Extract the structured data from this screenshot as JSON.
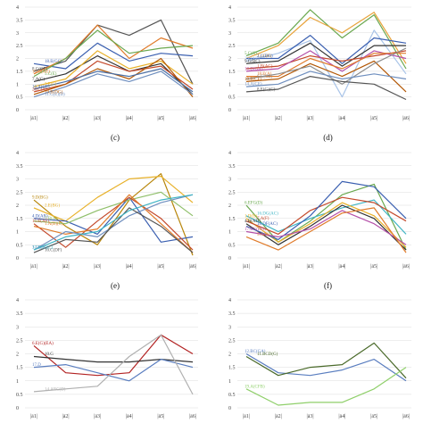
{
  "chart_data": [
    {
      "type": "line",
      "caption": "(c)",
      "ylim": [
        0,
        4
      ],
      "yticks": [
        "0",
        "0.5",
        "1",
        "1.5",
        "2",
        "2.5",
        "3",
        "3.5",
        "4"
      ],
      "categories": [
        "|ā1|",
        "|ā2|",
        "|ā3|",
        "|ā4|",
        "|ā5|",
        "|ā6|"
      ],
      "grid": true,
      "series": [
        {
          "name": "8.G(CE)",
          "color": "#555555",
          "values": [
            1.5,
            1.9,
            3.3,
            2.9,
            3.5,
            1.0
          ]
        },
        {
          "name": "18.E(GC)",
          "color": "#3a5fb0",
          "values": [
            1.8,
            1.6,
            2.6,
            1.9,
            2.2,
            2.1
          ]
        },
        {
          "name": "15.G(AE)",
          "color": "#e07b2a",
          "values": [
            1.4,
            2.0,
            3.3,
            2.0,
            2.8,
            2.4
          ]
        },
        {
          "name": "5.C(E)",
          "color": "#6aa84f",
          "values": [
            1.3,
            2.0,
            3.1,
            2.2,
            2.4,
            2.5
          ]
        },
        {
          "name": "7.A(C)",
          "color": "#333333",
          "values": [
            1.1,
            1.4,
            2.1,
            1.5,
            1.8,
            0.6
          ]
        },
        {
          "name": "3.E(C)",
          "color": "#e8b12a",
          "values": [
            0.9,
            1.2,
            2.3,
            1.6,
            1.9,
            1.0
          ]
        },
        {
          "name": "20.C(A)",
          "color": "#c44a2c",
          "values": [
            0.7,
            1.0,
            1.9,
            1.5,
            1.7,
            0.8
          ]
        },
        {
          "name": "19.B(DG)",
          "color": "#b35806",
          "values": [
            0.6,
            1.0,
            1.6,
            1.2,
            2.0,
            0.5
          ]
        },
        {
          "name": "16.A(CE)",
          "color": "#4a6fa5",
          "values": [
            0.8,
            1.1,
            1.5,
            1.3,
            1.6,
            0.7
          ]
        },
        {
          "name": "11.C(E)(D)",
          "color": "#6f8fbf",
          "values": [
            0.5,
            0.9,
            1.4,
            1.1,
            1.5,
            0.6
          ]
        }
      ]
    },
    {
      "type": "line",
      "caption": "(d)",
      "ylim": [
        0,
        4
      ],
      "yticks": [
        "0",
        "0.5",
        "1",
        "1.5",
        "2",
        "2.5",
        "3",
        "3.5",
        "4"
      ],
      "categories": [
        "|ā1|",
        "|ā2|",
        "|ā3|",
        "|ā4|",
        "|ā5|",
        "|ā6|"
      ],
      "grid": true,
      "series": [
        {
          "name": "5.C(G)",
          "color": "#6aa84f",
          "values": [
            2.1,
            2.6,
            3.9,
            2.8,
            3.7,
            1.6
          ]
        },
        {
          "name": "13.G(E)",
          "color": "#e8a33a",
          "values": [
            2.0,
            2.5,
            3.6,
            3.0,
            3.8,
            1.8
          ]
        },
        {
          "name": "3.E(AF)",
          "color": "#a9c4e8",
          "values": [
            1.9,
            2.2,
            2.7,
            0.5,
            3.1,
            1.4
          ]
        },
        {
          "name": "2.C(DG)",
          "color": "#3a5fb0",
          "values": [
            2.0,
            2.0,
            2.9,
            1.8,
            2.8,
            2.6
          ]
        },
        {
          "name": "9.G(BC)",
          "color": "#333333",
          "values": [
            1.8,
            1.9,
            2.6,
            1.7,
            2.5,
            2.5
          ]
        },
        {
          "name": "1.B(AC)",
          "color": "#c44a2c",
          "values": [
            1.6,
            1.7,
            2.1,
            1.9,
            2.1,
            2.3
          ]
        },
        {
          "name": "10.D(GA)",
          "color": "#b44fa8",
          "values": [
            1.5,
            1.6,
            2.3,
            1.5,
            2.3,
            2.0
          ]
        },
        {
          "name": "18.E(A)",
          "color": "#e07b2a",
          "values": [
            1.3,
            1.3,
            2.0,
            1.6,
            2.2,
            2.2
          ]
        },
        {
          "name": "19.B(CE)",
          "color": "#b35806",
          "values": [
            1.1,
            1.2,
            1.8,
            1.3,
            1.9,
            0.7
          ]
        },
        {
          "name": "6.G(CE)",
          "color": "#8c8c8c",
          "values": [
            1.2,
            1.4,
            1.7,
            1.0,
            1.8,
            2.4
          ]
        },
        {
          "name": "14.A(CE)",
          "color": "#6f8fbf",
          "values": [
            0.9,
            1.0,
            1.5,
            1.2,
            1.4,
            1.2
          ]
        },
        {
          "name": "8.E(G)(C)",
          "color": "#555555",
          "values": [
            0.7,
            0.8,
            1.3,
            1.1,
            1.0,
            0.4
          ]
        }
      ]
    },
    {
      "type": "line",
      "caption": "(e)",
      "ylim": [
        0,
        4
      ],
      "yticks": [
        "0",
        "0.5",
        "1",
        "1.5",
        "2",
        "2.5",
        "3",
        "3.5",
        "4"
      ],
      "categories": [
        "|ā1|",
        "|ā2|",
        "|ā3|",
        "|ā4|",
        "|ā5|",
        "|ā6|"
      ],
      "grid": true,
      "series": [
        {
          "name": "9.D(BG)",
          "color": "#b8860b",
          "values": [
            2.2,
            1.2,
            0.5,
            2.2,
            3.2,
            0.1
          ]
        },
        {
          "name": "2.E(BG)",
          "color": "#e8b12a",
          "values": [
            1.9,
            1.4,
            2.3,
            3.0,
            3.1,
            2.1
          ]
        },
        {
          "name": "4.D(AB)",
          "color": "#3a5fb0",
          "values": [
            1.5,
            1.4,
            0.9,
            2.3,
            0.6,
            0.8
          ]
        },
        {
          "name": "7.B(A)",
          "color": "#8fbf6a",
          "values": [
            1.4,
            1.3,
            1.8,
            2.2,
            2.5,
            1.6
          ]
        },
        {
          "name": "15.E(AF)",
          "color": "#c44a2c",
          "values": [
            1.3,
            0.4,
            1.4,
            2.3,
            1.5,
            0.3
          ]
        },
        {
          "name": "1.A(B)(C)",
          "color": "#e07b2a",
          "values": [
            1.2,
            0.9,
            1.1,
            2.4,
            1.3,
            0.2
          ]
        },
        {
          "name": "3.C(DF)",
          "color": "#6f8fbf",
          "values": [
            0.3,
            1.0,
            0.8,
            1.6,
            2.1,
            2.4
          ]
        },
        {
          "name": "10.C(DF)",
          "color": "#555555",
          "values": [
            0.2,
            0.7,
            0.6,
            1.9,
            1.2,
            0.2
          ]
        },
        {
          "name": "17.D(B)(C)",
          "color": "#3fb4c4",
          "values": [
            0.3,
            0.8,
            1.0,
            1.8,
            2.2,
            2.4
          ]
        }
      ]
    },
    {
      "type": "line",
      "caption": "(f)",
      "ylim": [
        0,
        4
      ],
      "yticks": [
        "0",
        "0.5",
        "1",
        "1.5",
        "2",
        "2.5",
        "3",
        "3.5",
        "4"
      ],
      "categories": [
        "|ā1|",
        "|ā2|",
        "|ā3|",
        "|ā4|",
        "|ā5|",
        "|ā6|"
      ],
      "grid": true,
      "series": [
        {
          "name": "6.EFG(D)",
          "color": "#6aa84f",
          "values": [
            2.0,
            0.6,
            1.4,
            2.4,
            2.8,
            0.3
          ]
        },
        {
          "name": "16.DG(AC)",
          "color": "#3fb4c4",
          "values": [
            1.6,
            1.0,
            1.5,
            1.9,
            2.2,
            0.9
          ]
        },
        {
          "name": "1.D(B)",
          "color": "#e8b12a",
          "values": [
            1.5,
            0.6,
            1.3,
            2.1,
            1.6,
            0.4
          ]
        },
        {
          "name": "7.A(F)",
          "color": "#c44a2c",
          "values": [
            1.4,
            0.9,
            1.8,
            2.3,
            2.1,
            1.4
          ]
        },
        {
          "name": "4.B(AD)",
          "color": "#333333",
          "values": [
            1.3,
            0.5,
            1.2,
            2.0,
            1.5,
            0.3
          ]
        },
        {
          "name": "18.DF(AC)",
          "color": "#3a5fb0",
          "values": [
            1.2,
            0.7,
            1.6,
            2.9,
            2.7,
            1.5
          ]
        },
        {
          "name": "17.BG(DG)",
          "color": "#b44fa8",
          "values": [
            1.0,
            0.8,
            1.1,
            1.8,
            1.3,
            0.5
          ]
        },
        {
          "name": "5.C(D)",
          "color": "#e07b2a",
          "values": [
            0.8,
            0.3,
            1.0,
            1.7,
            1.9,
            0.2
          ]
        }
      ]
    },
    {
      "type": "line",
      "caption": "",
      "ylim": [
        0,
        4
      ],
      "yticks": [
        "0",
        "0.5",
        "1",
        "1.5",
        "2",
        "2.5",
        "3",
        "3.5",
        "4"
      ],
      "categories": [
        "|ā1|",
        "|ā2|",
        "|ā3|",
        "|ā4|",
        "|ā5|",
        "|ā6|"
      ],
      "grid": true,
      "series": [
        {
          "name": "6.E(G)(EA)",
          "color": "#b22222",
          "values": [
            2.3,
            1.3,
            1.2,
            1.3,
            2.7,
            2.0
          ]
        },
        {
          "name": "10.G",
          "color": "#333333",
          "values": [
            1.9,
            1.8,
            1.7,
            1.7,
            1.8,
            1.7
          ]
        },
        {
          "name": "17.D",
          "color": "#5a7ec0",
          "values": [
            1.5,
            1.6,
            1.3,
            1.0,
            1.8,
            1.5
          ]
        },
        {
          "name": "14.ABC(D)",
          "color": "#b0b0b0",
          "values": [
            0.6,
            0.7,
            0.8,
            1.9,
            2.7,
            0.5
          ]
        }
      ]
    },
    {
      "type": "line",
      "caption": "",
      "ylim": [
        0,
        4
      ],
      "yticks": [
        "0",
        "0.5",
        "1",
        "1.5",
        "2",
        "2.5",
        "3",
        "3.5",
        "4"
      ],
      "categories": [
        "|ā1|",
        "|ā2|",
        "|ā3|",
        "|ā4|",
        "|ā5|",
        "|ā6|"
      ],
      "grid": true,
      "series": [
        {
          "name": "12.BC(GA)",
          "color": "#5a7ec0",
          "values": [
            2.0,
            1.3,
            1.2,
            1.4,
            1.8,
            1.0
          ]
        },
        {
          "name": "11.BCD(G)",
          "color": "#4a6a2a",
          "values": [
            1.9,
            1.2,
            1.5,
            1.6,
            2.4,
            1.1
          ]
        },
        {
          "name": "19.A(CFB)",
          "color": "#8fcf6a",
          "values": [
            0.7,
            0.1,
            0.2,
            0.2,
            0.7,
            1.5
          ]
        }
      ]
    }
  ]
}
